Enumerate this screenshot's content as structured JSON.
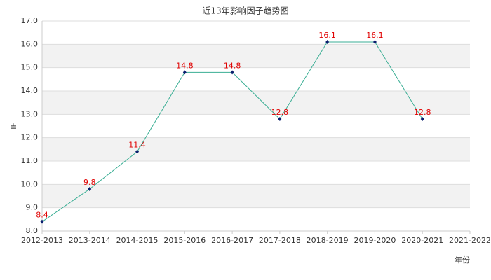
{
  "chart_data": {
    "type": "line",
    "title": "近13年影响因子趋势图",
    "y_label": "IF",
    "x_label": "年份",
    "categories": [
      "2012-2013",
      "2013-2014",
      "2014-2015",
      "2015-2016",
      "2016-2017",
      "2017-2018",
      "2018-2019",
      "2019-2020",
      "2020-2021",
      "2021-2022"
    ],
    "values": [
      8.4,
      9.8,
      11.4,
      14.8,
      14.8,
      12.8,
      16.1,
      16.1,
      12.8,
      null
    ],
    "color": "#3aae94",
    "marker_color": "#0a1f6e",
    "label_color": "#e00000",
    "ylim": [
      8,
      17
    ],
    "yticks": [
      {
        "value": 8,
        "label": "8.0"
      },
      {
        "value": 9,
        "label": "9.0"
      },
      {
        "value": 10,
        "label": "10.0"
      },
      {
        "value": 11,
        "label": "11.0"
      },
      {
        "value": 12,
        "label": "12.0"
      },
      {
        "value": 13,
        "label": "13.0"
      },
      {
        "value": 14,
        "label": "14.0"
      },
      {
        "value": 15,
        "label": "15.0"
      },
      {
        "value": 16,
        "label": "16.0"
      },
      {
        "value": 17,
        "label": "17.0"
      }
    ],
    "grid": true
  }
}
